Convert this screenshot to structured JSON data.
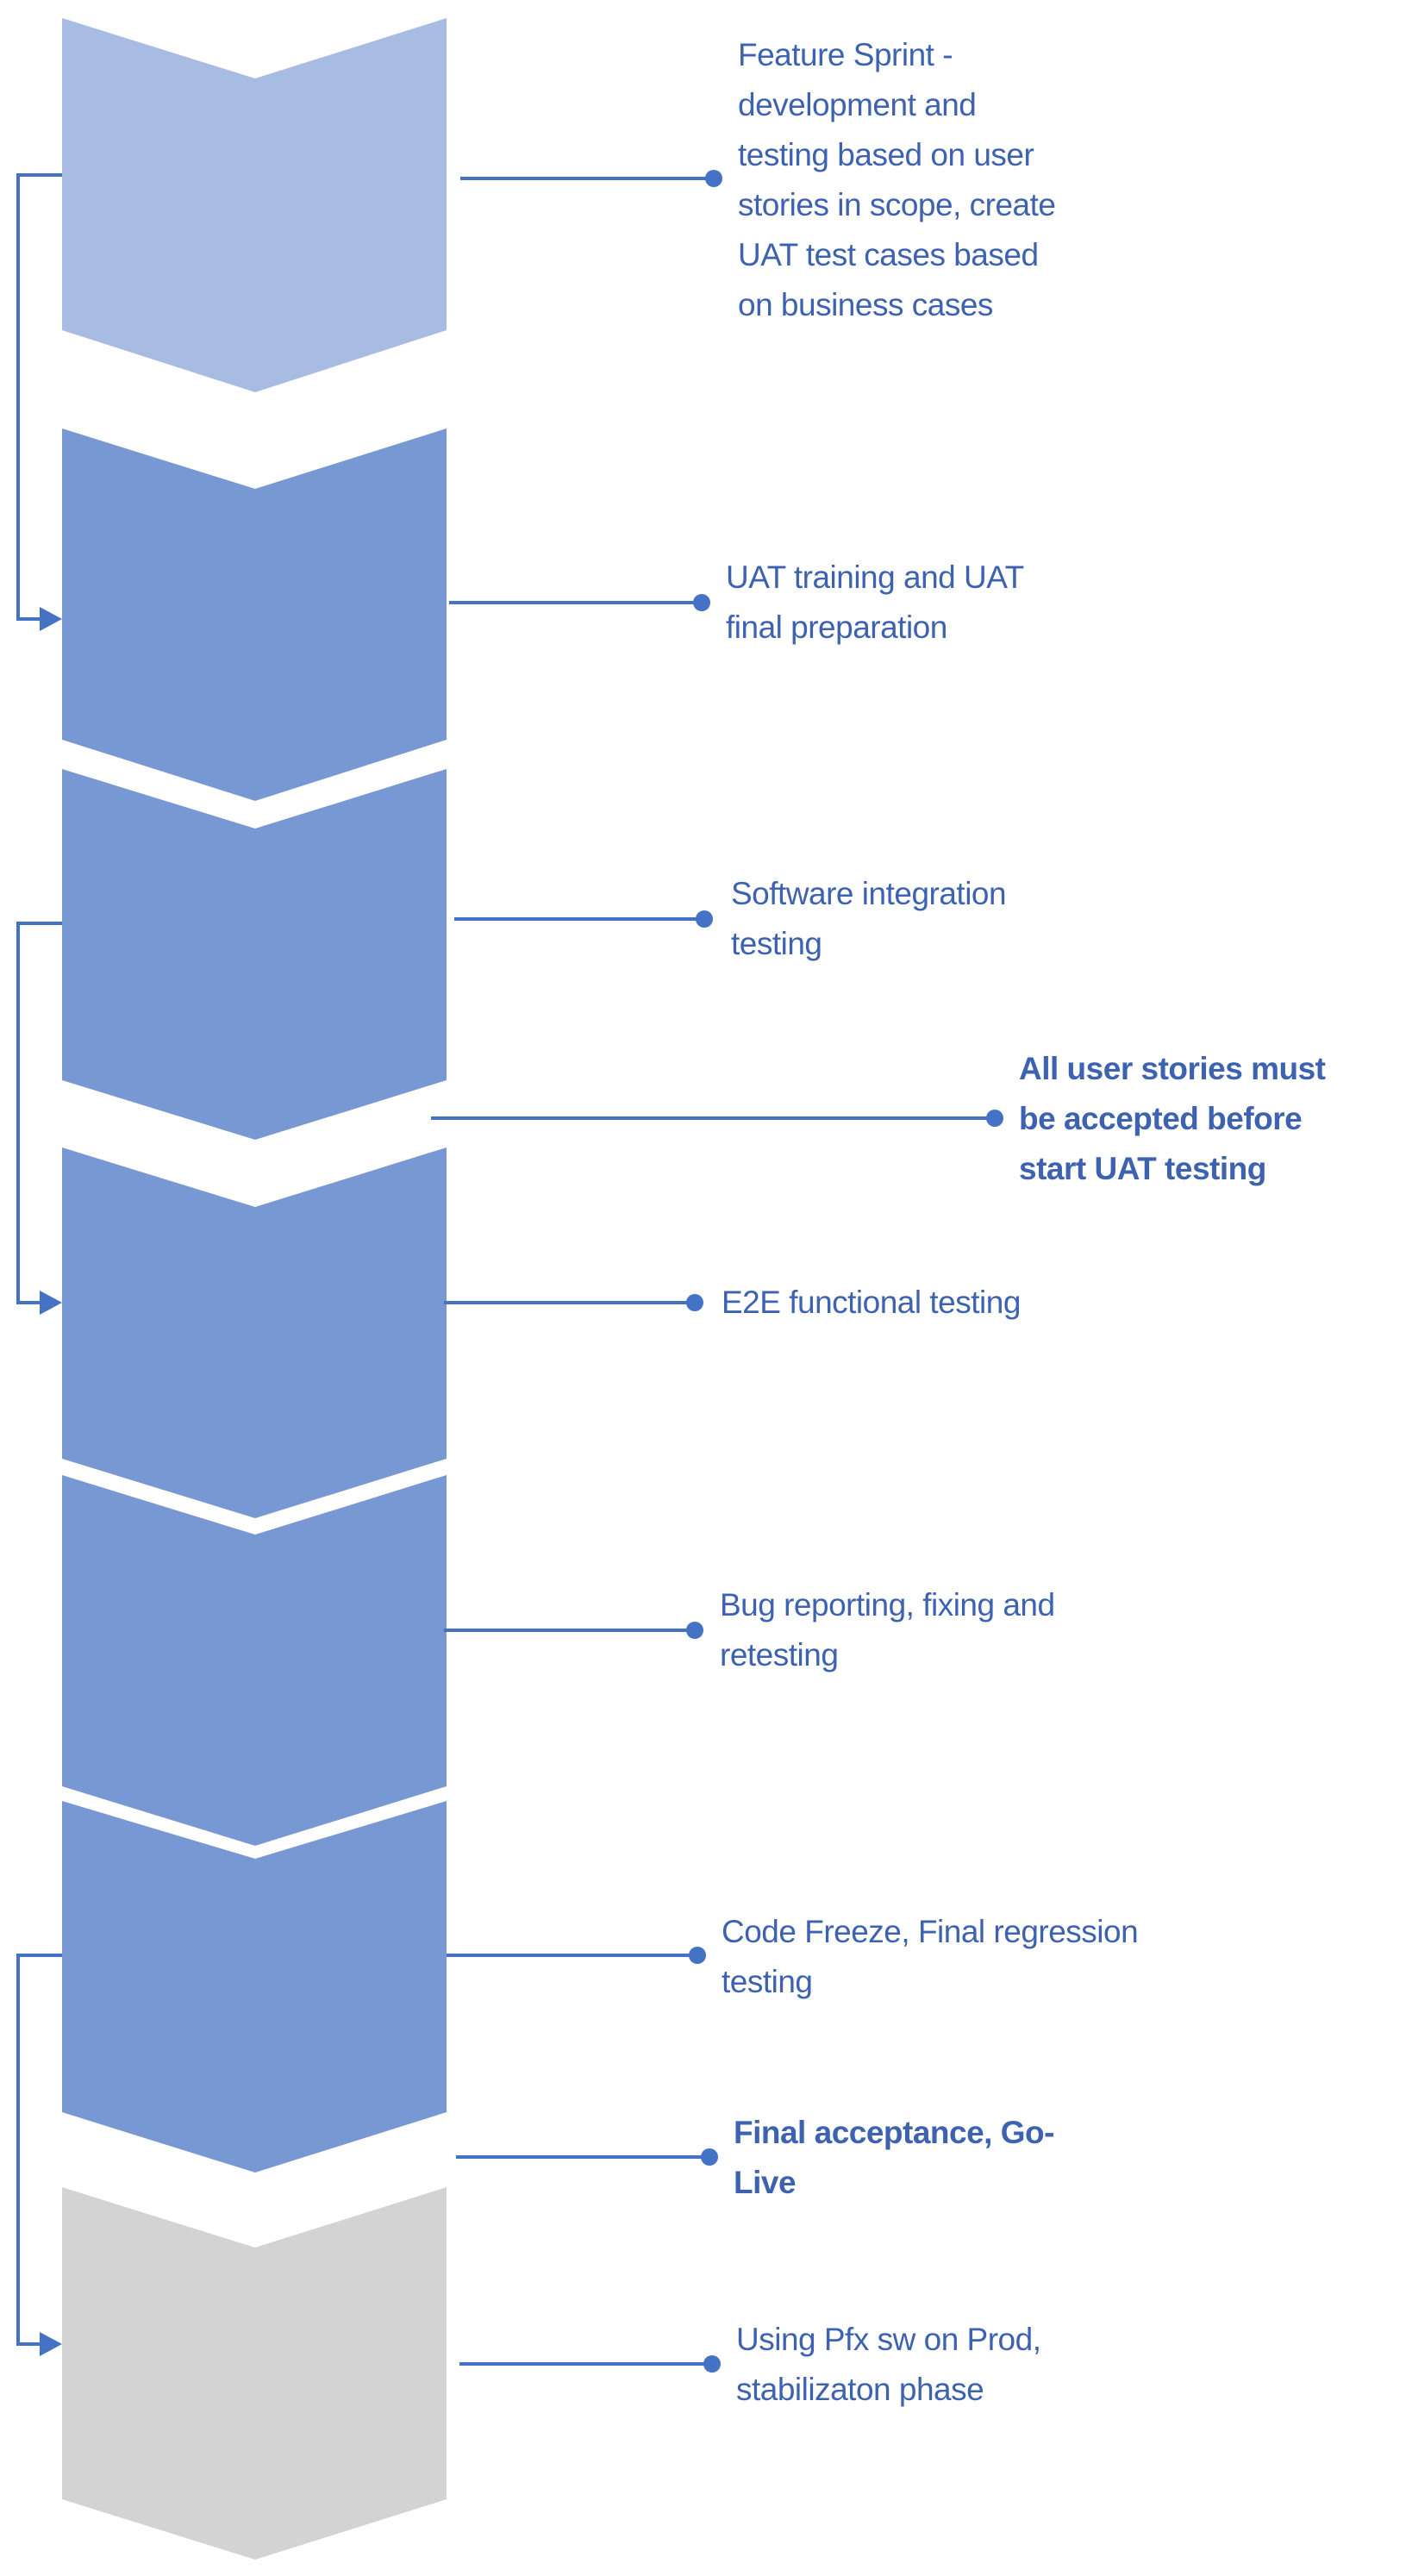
{
  "colors": {
    "phase_light": "#a8bbe2",
    "phase_mid": "#7898d3",
    "phase_gray": "#d3d3d3",
    "connector": "#4472c4",
    "text": "#3d62b0"
  },
  "phases": [
    {
      "color": "phase_light"
    },
    {
      "color": "phase_mid"
    },
    {
      "color": "phase_mid"
    },
    {
      "color": "phase_mid"
    },
    {
      "color": "phase_mid"
    },
    {
      "color": "phase_mid"
    },
    {
      "color": "phase_gray"
    }
  ],
  "labels": [
    {
      "bold": false,
      "lines": [
        "Feature Sprint -",
        "development and",
        "testing based on user",
        "stories in scope, create",
        "UAT test cases based",
        "on business cases"
      ]
    },
    {
      "bold": false,
      "lines": [
        "UAT training and UAT",
        "final preparation"
      ]
    },
    {
      "bold": false,
      "lines": [
        "Software integration",
        "testing"
      ]
    },
    {
      "bold": true,
      "lines": [
        "All user stories must",
        "be accepted before",
        "start UAT testing"
      ]
    },
    {
      "bold": false,
      "lines": [
        "E2E functional testing"
      ]
    },
    {
      "bold": false,
      "lines": [
        "Bug reporting, fixing and",
        "retesting"
      ]
    },
    {
      "bold": false,
      "lines": [
        "Code Freeze, Final regression",
        "testing"
      ]
    },
    {
      "bold": true,
      "lines": [
        "Final acceptance, Go-",
        "Live"
      ]
    },
    {
      "bold": false,
      "lines": [
        "Using Pfx sw on Prod,",
        "stabilizaton phase"
      ]
    }
  ],
  "loop_arrows": [
    {
      "from_phase": 1,
      "to_phase": 2
    },
    {
      "from_phase": 3,
      "to_phase": 4
    },
    {
      "from_phase": 6,
      "to_phase": 7
    }
  ]
}
